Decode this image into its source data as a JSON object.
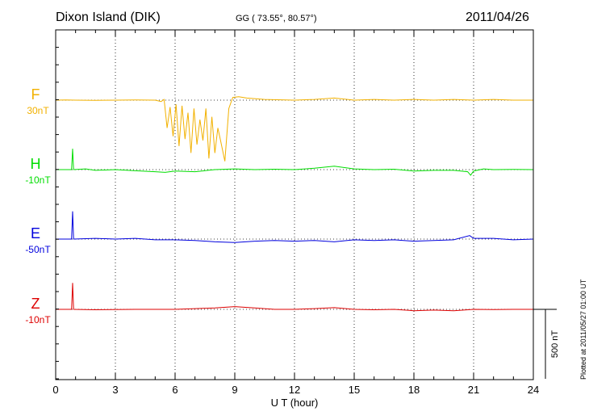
{
  "header": {
    "station": "Dixon Island (DIK)",
    "coordinates": "GG ( 73.55°,  80.57°)",
    "date": "2011/04/26"
  },
  "footer": {
    "plotted_note": "Plotted at 2011/05/27 01:00 UT"
  },
  "scale_bar": {
    "label": "500 nT",
    "value_nT": 500
  },
  "chart_data": {
    "type": "line",
    "xlabel": "U T (hour)",
    "xlim": [
      0,
      24
    ],
    "x_ticks": [
      "0",
      "3",
      "6",
      "9",
      "12",
      "15",
      "18",
      "21",
      "24"
    ],
    "grid": "dotted vertical every 3 hours, dotted baseline per component",
    "series": [
      {
        "name": "F",
        "offset_label": "30nT",
        "color": "#f2b100",
        "points": [
          [
            0,
            0
          ],
          [
            0.5,
            1
          ],
          [
            1,
            0
          ],
          [
            2,
            -1
          ],
          [
            3,
            0
          ],
          [
            4,
            1
          ],
          [
            5,
            0
          ],
          [
            5.3,
            -10
          ],
          [
            5.45,
            5
          ],
          [
            5.6,
            -200
          ],
          [
            5.75,
            -50
          ],
          [
            5.9,
            -260
          ],
          [
            6.05,
            -30
          ],
          [
            6.2,
            -330
          ],
          [
            6.35,
            -40
          ],
          [
            6.5,
            -280
          ],
          [
            6.65,
            -90
          ],
          [
            6.8,
            -380
          ],
          [
            6.95,
            -60
          ],
          [
            7.1,
            -320
          ],
          [
            7.25,
            -140
          ],
          [
            7.4,
            -290
          ],
          [
            7.55,
            -60
          ],
          [
            7.7,
            -420
          ],
          [
            7.85,
            -120
          ],
          [
            8.0,
            -380
          ],
          [
            8.15,
            -200
          ],
          [
            8.3,
            -300
          ],
          [
            8.5,
            -440
          ],
          [
            8.7,
            -60
          ],
          [
            8.9,
            20
          ],
          [
            9.2,
            25
          ],
          [
            9.6,
            15
          ],
          [
            10.5,
            5
          ],
          [
            12,
            0
          ],
          [
            13,
            5
          ],
          [
            14,
            15
          ],
          [
            15,
            0
          ],
          [
            16,
            5
          ],
          [
            17,
            0
          ],
          [
            18,
            5
          ],
          [
            19,
            0
          ],
          [
            20,
            5
          ],
          [
            21,
            0
          ],
          [
            22,
            5
          ],
          [
            23,
            0
          ],
          [
            24,
            0
          ]
        ]
      },
      {
        "name": "H",
        "offset_label": "-10nT",
        "color": "#00dd00",
        "points": [
          [
            0,
            0
          ],
          [
            0.8,
            0
          ],
          [
            0.85,
            150
          ],
          [
            0.9,
            0
          ],
          [
            1.5,
            5
          ],
          [
            2,
            -5
          ],
          [
            3,
            0
          ],
          [
            4,
            -8
          ],
          [
            5,
            -15
          ],
          [
            5.5,
            -20
          ],
          [
            6,
            -10
          ],
          [
            7,
            -15
          ],
          [
            8,
            0
          ],
          [
            9,
            5
          ],
          [
            10,
            0
          ],
          [
            11,
            3
          ],
          [
            12,
            0
          ],
          [
            13,
            10
          ],
          [
            14,
            25
          ],
          [
            15,
            5
          ],
          [
            16,
            0
          ],
          [
            17,
            3
          ],
          [
            18,
            -10
          ],
          [
            19,
            -5
          ],
          [
            20,
            -5
          ],
          [
            20.7,
            -15
          ],
          [
            20.85,
            -40
          ],
          [
            21.0,
            -10
          ],
          [
            21.5,
            5
          ],
          [
            22,
            0
          ],
          [
            23,
            2
          ],
          [
            24,
            0
          ]
        ]
      },
      {
        "name": "E",
        "offset_label": "-50nT",
        "color": "#0000dd",
        "points": [
          [
            0,
            0
          ],
          [
            0.8,
            0
          ],
          [
            0.85,
            200
          ],
          [
            0.9,
            0
          ],
          [
            2,
            5
          ],
          [
            3,
            0
          ],
          [
            4,
            5
          ],
          [
            5,
            -5
          ],
          [
            6,
            -5
          ],
          [
            7,
            -10
          ],
          [
            8,
            -20
          ],
          [
            9,
            -25
          ],
          [
            10,
            -15
          ],
          [
            11,
            -10
          ],
          [
            12,
            -15
          ],
          [
            13,
            -10
          ],
          [
            14,
            -20
          ],
          [
            15,
            -5
          ],
          [
            16,
            -10
          ],
          [
            17,
            -5
          ],
          [
            18,
            -15
          ],
          [
            19,
            -10
          ],
          [
            20,
            -5
          ],
          [
            20.8,
            25
          ],
          [
            21,
            5
          ],
          [
            22,
            5
          ],
          [
            23,
            -5
          ],
          [
            24,
            0
          ]
        ]
      },
      {
        "name": "Z",
        "offset_label": "-10nT",
        "color": "#dd0000",
        "points": [
          [
            0,
            0
          ],
          [
            0.8,
            0
          ],
          [
            0.85,
            190
          ],
          [
            0.9,
            0
          ],
          [
            2,
            -3
          ],
          [
            4,
            0
          ],
          [
            6,
            0
          ],
          [
            7,
            5
          ],
          [
            8,
            10
          ],
          [
            9,
            20
          ],
          [
            10,
            10
          ],
          [
            11,
            0
          ],
          [
            12,
            0
          ],
          [
            13,
            5
          ],
          [
            14,
            12
          ],
          [
            15,
            0
          ],
          [
            16,
            -3
          ],
          [
            17,
            0
          ],
          [
            18,
            -10
          ],
          [
            19,
            -5
          ],
          [
            20,
            -10
          ],
          [
            21,
            0
          ],
          [
            22,
            -2
          ],
          [
            23,
            0
          ],
          [
            24,
            0
          ]
        ]
      }
    ]
  }
}
